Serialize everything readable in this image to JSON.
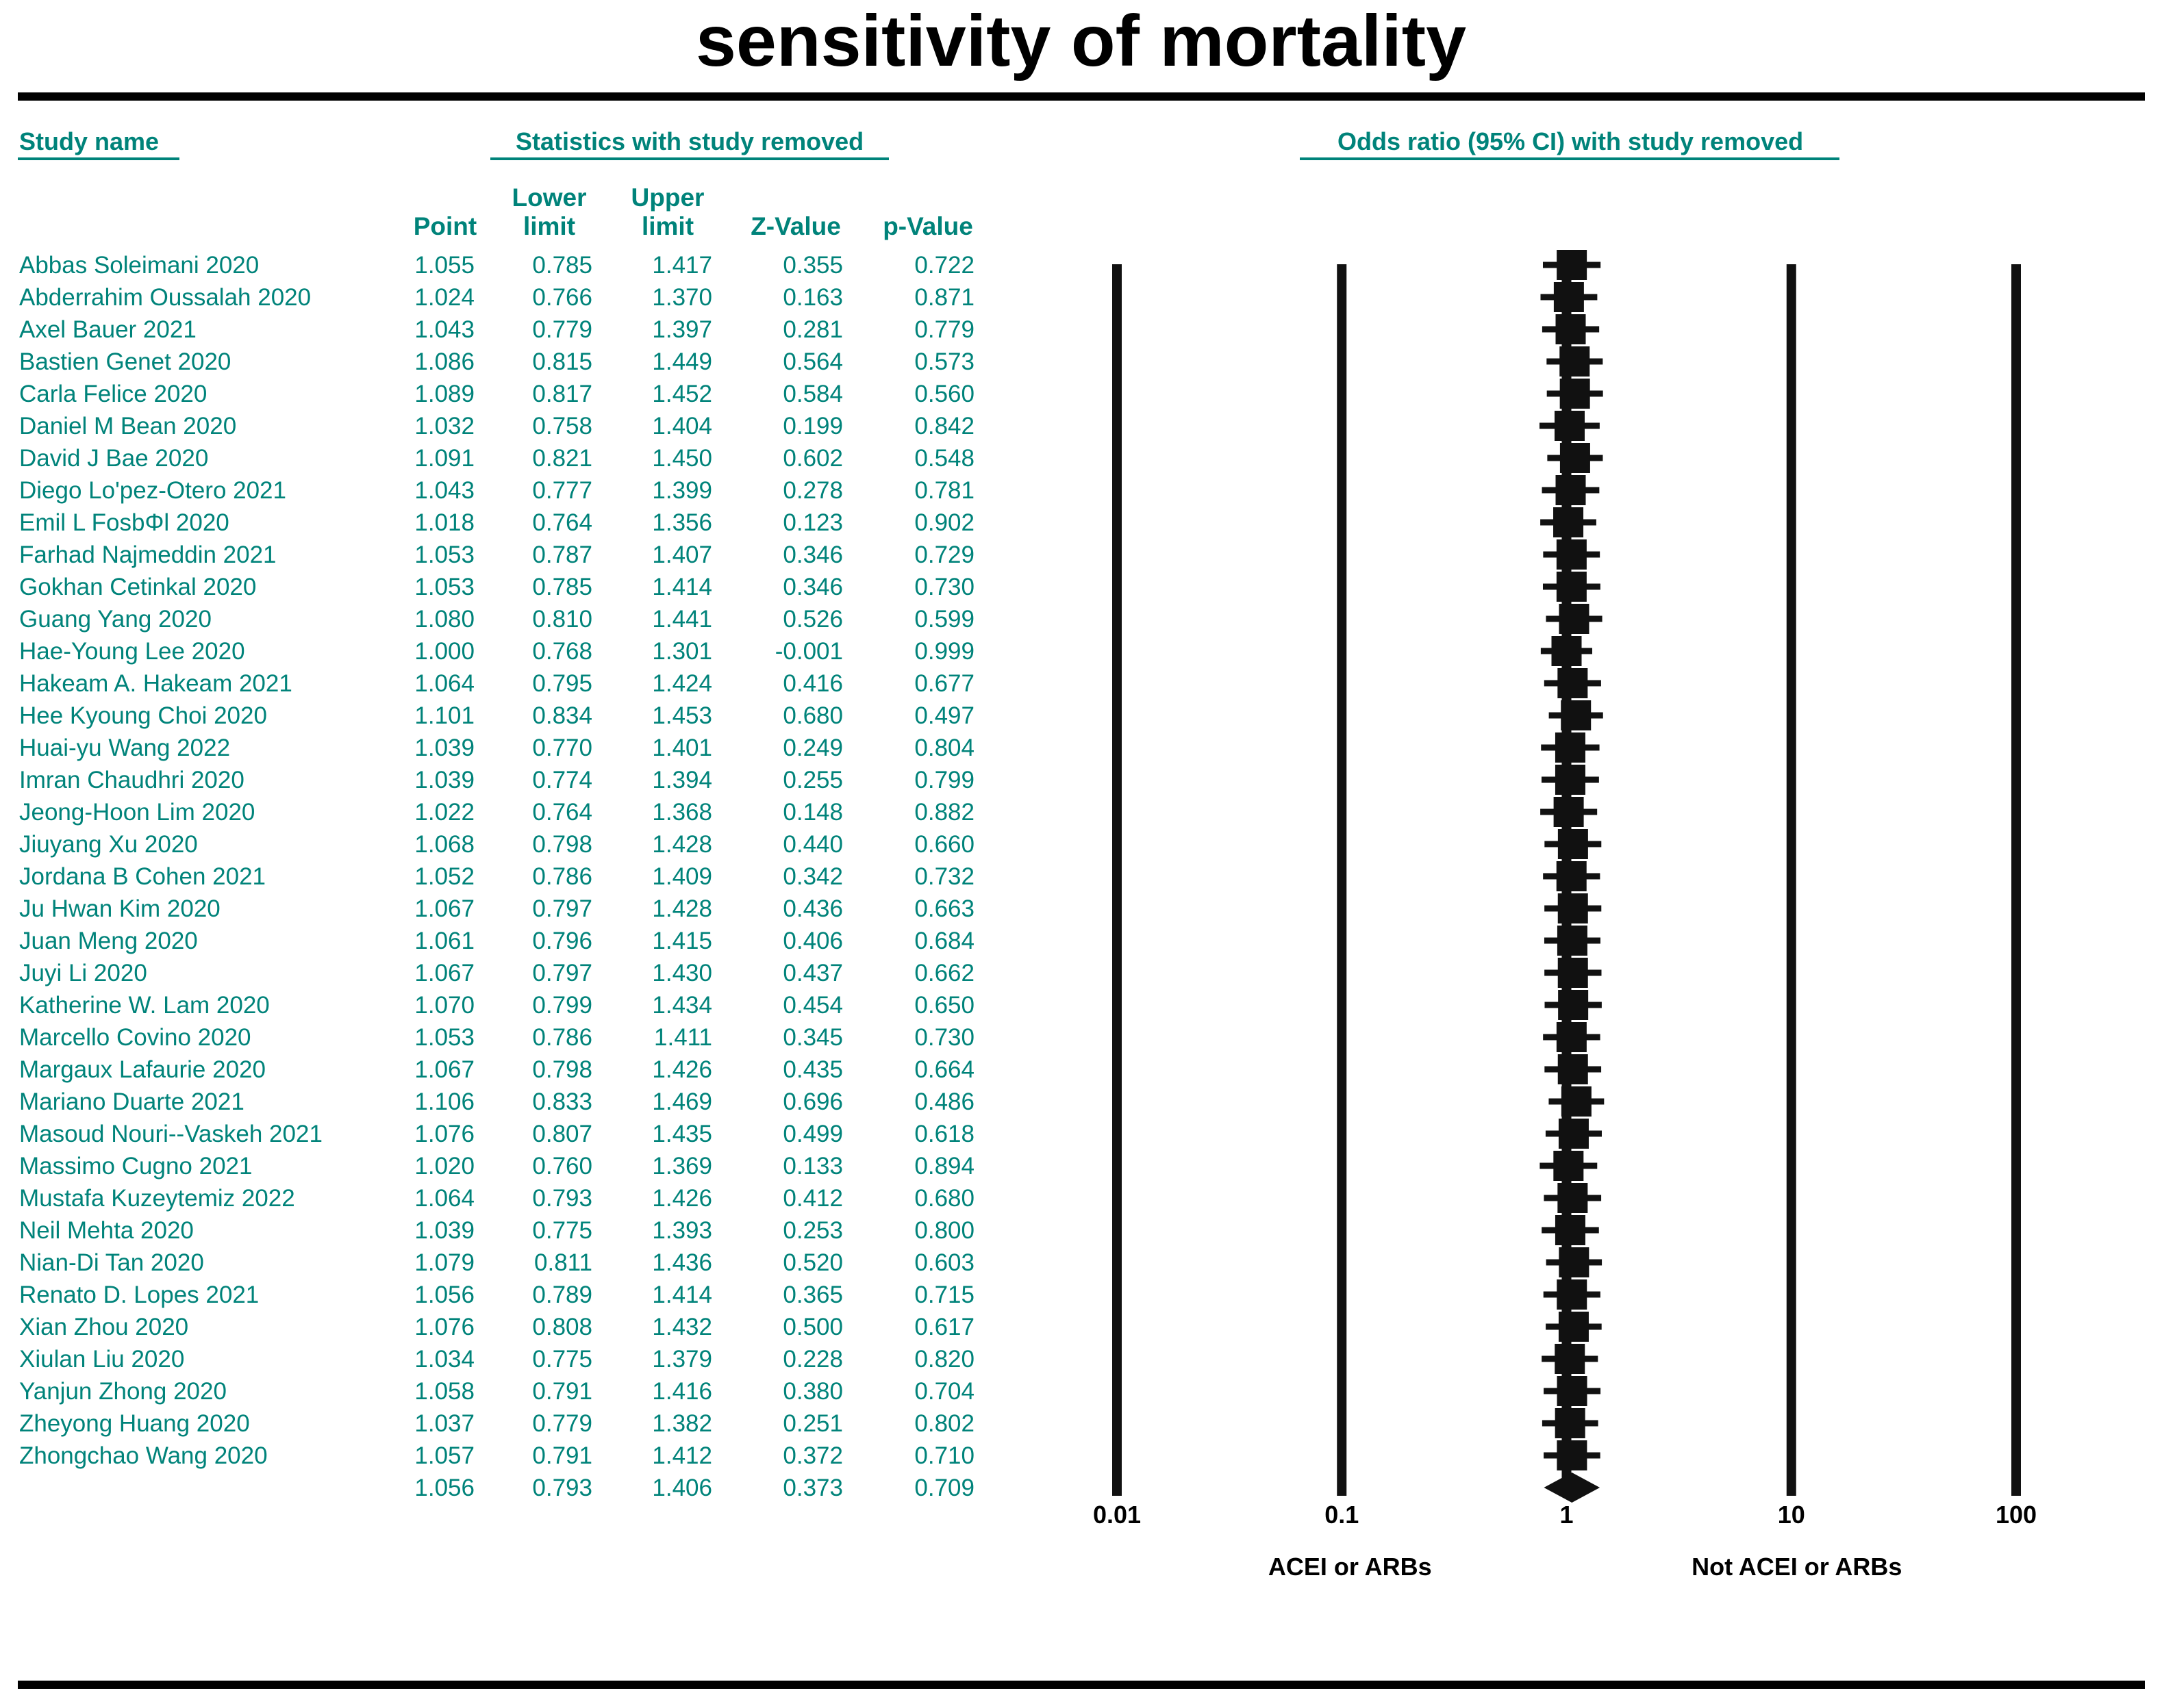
{
  "title": "sensitivity of mortality",
  "headers": {
    "study_name": "Study name",
    "statistics": "Statistics with study removed",
    "odds_ratio": "Odds ratio (95% CI) with study removed"
  },
  "columns": {
    "point": "Point",
    "lower_1": "Lower",
    "lower_2": "limit",
    "upper_1": "Upper",
    "upper_2": "limit",
    "z": "Z-Value",
    "p": "p-Value"
  },
  "summary": {
    "point": "1.056",
    "lower": "0.793",
    "upper": "1.406",
    "z": "0.373",
    "p": "0.709"
  },
  "chart_data": {
    "type": "forest",
    "title": "sensitivity of mortality",
    "xscale": "log",
    "xlim": [
      0.01,
      100
    ],
    "xticks": [
      "0.01",
      "0.1",
      "1",
      "10",
      "100"
    ],
    "left_label": "ACEI or ARBs",
    "right_label": "Not ACEI or ARBs",
    "studies": [
      {
        "name": "Abbas Soleimani 2020",
        "point": "1.055",
        "lower": "0.785",
        "upper": "1.417",
        "z": "0.355",
        "p": "0.722"
      },
      {
        "name": "Abderrahim Oussalah 2020",
        "point": "1.024",
        "lower": "0.766",
        "upper": "1.370",
        "z": "0.163",
        "p": "0.871"
      },
      {
        "name": "Axel Bauer 2021",
        "point": "1.043",
        "lower": "0.779",
        "upper": "1.397",
        "z": "0.281",
        "p": "0.779"
      },
      {
        "name": "Bastien Genet 2020",
        "point": "1.086",
        "lower": "0.815",
        "upper": "1.449",
        "z": "0.564",
        "p": "0.573"
      },
      {
        "name": "Carla Felice 2020",
        "point": "1.089",
        "lower": "0.817",
        "upper": "1.452",
        "z": "0.584",
        "p": "0.560"
      },
      {
        "name": "Daniel M Bean 2020",
        "point": "1.032",
        "lower": "0.758",
        "upper": "1.404",
        "z": "0.199",
        "p": "0.842"
      },
      {
        "name": "David J Bae 2020",
        "point": "1.091",
        "lower": "0.821",
        "upper": "1.450",
        "z": "0.602",
        "p": "0.548"
      },
      {
        "name": "Diego Loʹpez-Otero 2021",
        "point": "1.043",
        "lower": "0.777",
        "upper": "1.399",
        "z": "0.278",
        "p": "0.781"
      },
      {
        "name": "Emil L FosbΦl 2020",
        "point": "1.018",
        "lower": "0.764",
        "upper": "1.356",
        "z": "0.123",
        "p": "0.902"
      },
      {
        "name": "Farhad Najmeddin 2021",
        "point": "1.053",
        "lower": "0.787",
        "upper": "1.407",
        "z": "0.346",
        "p": "0.729"
      },
      {
        "name": "Gokhan Cetinkal 2020",
        "point": "1.053",
        "lower": "0.785",
        "upper": "1.414",
        "z": "0.346",
        "p": "0.730"
      },
      {
        "name": "Guang Yang 2020",
        "point": "1.080",
        "lower": "0.810",
        "upper": "1.441",
        "z": "0.526",
        "p": "0.599"
      },
      {
        "name": "Hae-Young Lee 2020",
        "point": "1.000",
        "lower": "0.768",
        "upper": "1.301",
        "z": "-0.001",
        "p": "0.999"
      },
      {
        "name": "Hakeam A. Hakeam 2021",
        "point": "1.064",
        "lower": "0.795",
        "upper": "1.424",
        "z": "0.416",
        "p": "0.677"
      },
      {
        "name": "Hee Kyoung Choi 2020",
        "point": "1.101",
        "lower": "0.834",
        "upper": "1.453",
        "z": "0.680",
        "p": "0.497"
      },
      {
        "name": "Huai-yu Wang 2022",
        "point": "1.039",
        "lower": "0.770",
        "upper": "1.401",
        "z": "0.249",
        "p": "0.804"
      },
      {
        "name": "Imran Chaudhri 2020",
        "point": "1.039",
        "lower": "0.774",
        "upper": "1.394",
        "z": "0.255",
        "p": "0.799"
      },
      {
        "name": "Jeong-Hoon Lim 2020",
        "point": "1.022",
        "lower": "0.764",
        "upper": "1.368",
        "z": "0.148",
        "p": "0.882"
      },
      {
        "name": "Jiuyang Xu 2020",
        "point": "1.068",
        "lower": "0.798",
        "upper": "1.428",
        "z": "0.440",
        "p": "0.660"
      },
      {
        "name": "Jordana B Cohen 2021",
        "point": "1.052",
        "lower": "0.786",
        "upper": "1.409",
        "z": "0.342",
        "p": "0.732"
      },
      {
        "name": "Ju Hwan Kim 2020",
        "point": "1.067",
        "lower": "0.797",
        "upper": "1.428",
        "z": "0.436",
        "p": "0.663"
      },
      {
        "name": "Juan Meng 2020",
        "point": "1.061",
        "lower": "0.796",
        "upper": "1.415",
        "z": "0.406",
        "p": "0.684"
      },
      {
        "name": "Juyi Li 2020",
        "point": "1.067",
        "lower": "0.797",
        "upper": "1.430",
        "z": "0.437",
        "p": "0.662"
      },
      {
        "name": "Katherine W. Lam 2020",
        "point": "1.070",
        "lower": "0.799",
        "upper": "1.434",
        "z": "0.454",
        "p": "0.650"
      },
      {
        "name": "Marcello Covino 2020",
        "point": "1.053",
        "lower": "0.786",
        "upper": "1.411",
        "z": "0.345",
        "p": "0.730"
      },
      {
        "name": "Margaux Lafaurie 2020",
        "point": "1.067",
        "lower": "0.798",
        "upper": "1.426",
        "z": "0.435",
        "p": "0.664"
      },
      {
        "name": "Mariano Duarte 2021",
        "point": "1.106",
        "lower": "0.833",
        "upper": "1.469",
        "z": "0.696",
        "p": "0.486"
      },
      {
        "name": "Masoud Nouri--Vaskeh 2021",
        "point": "1.076",
        "lower": "0.807",
        "upper": "1.435",
        "z": "0.499",
        "p": "0.618"
      },
      {
        "name": "Massimo Cugno 2021",
        "point": "1.020",
        "lower": "0.760",
        "upper": "1.369",
        "z": "0.133",
        "p": "0.894"
      },
      {
        "name": "Mustafa Kuzeytemiz 2022",
        "point": "1.064",
        "lower": "0.793",
        "upper": "1.426",
        "z": "0.412",
        "p": "0.680"
      },
      {
        "name": "Neil Mehta 2020",
        "point": "1.039",
        "lower": "0.775",
        "upper": "1.393",
        "z": "0.253",
        "p": "0.800"
      },
      {
        "name": "Nian-Di Tan 2020",
        "point": "1.079",
        "lower": "0.811",
        "upper": "1.436",
        "z": "0.520",
        "p": "0.603"
      },
      {
        "name": "Renato D. Lopes 2021",
        "point": "1.056",
        "lower": "0.789",
        "upper": "1.414",
        "z": "0.365",
        "p": "0.715"
      },
      {
        "name": "Xian Zhou 2020",
        "point": "1.076",
        "lower": "0.808",
        "upper": "1.432",
        "z": "0.500",
        "p": "0.617"
      },
      {
        "name": "Xiulan Liu 2020",
        "point": "1.034",
        "lower": "0.775",
        "upper": "1.379",
        "z": "0.228",
        "p": "0.820"
      },
      {
        "name": "Yanjun Zhong 2020",
        "point": "1.058",
        "lower": "0.791",
        "upper": "1.416",
        "z": "0.380",
        "p": "0.704"
      },
      {
        "name": "Zheyong Huang 2020",
        "point": "1.037",
        "lower": "0.779",
        "upper": "1.382",
        "z": "0.251",
        "p": "0.802"
      },
      {
        "name": "Zhongchao Wang 2020",
        "point": "1.057",
        "lower": "0.791",
        "upper": "1.412",
        "z": "0.372",
        "p": "0.710"
      }
    ]
  }
}
